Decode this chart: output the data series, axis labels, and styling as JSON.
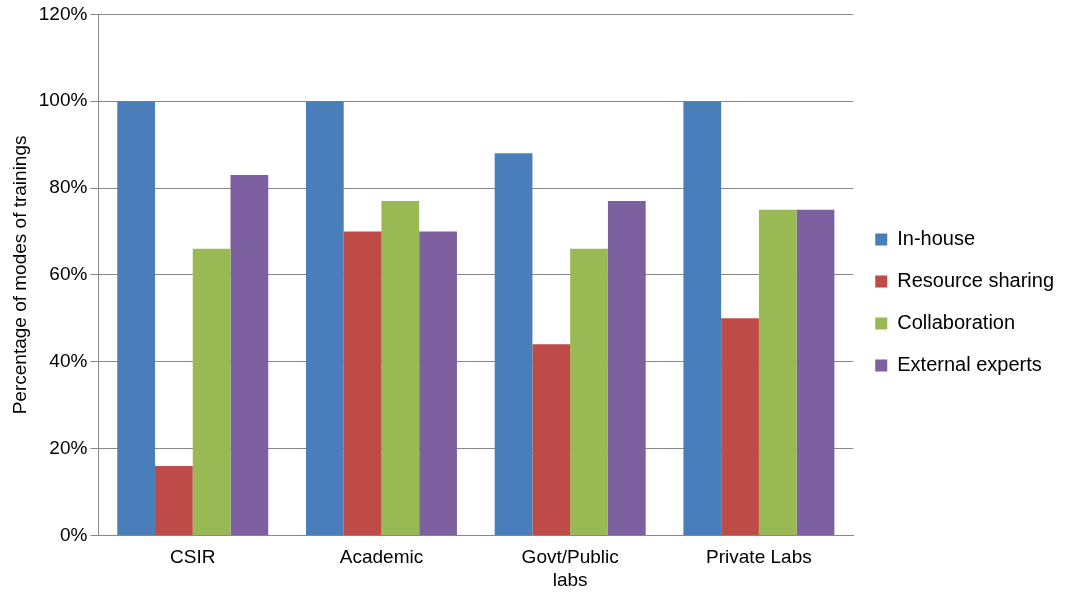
{
  "chart_data": {
    "type": "bar",
    "ylabel": "Percentage of modes of trainings",
    "categories": [
      "CSIR",
      "Academic",
      "Govt/Public labs",
      "Private Labs"
    ],
    "series": [
      {
        "name": "In-house",
        "color": "#4a7ebb",
        "values": [
          100,
          100,
          88,
          100
        ]
      },
      {
        "name": "Resource sharing",
        "color": "#be4b48",
        "values": [
          16,
          70,
          44,
          50
        ]
      },
      {
        "name": "Collaboration",
        "color": "#98b954",
        "values": [
          66,
          77,
          66,
          75
        ]
      },
      {
        "name": "External experts",
        "color": "#7d60a0",
        "values": [
          83,
          70,
          77,
          75
        ]
      }
    ],
    "ylim": [
      0,
      120
    ],
    "yticks": [
      {
        "value": 0,
        "label": "0%"
      },
      {
        "value": 20,
        "label": "20%"
      },
      {
        "value": 40,
        "label": "40%"
      },
      {
        "value": 60,
        "label": "60%"
      },
      {
        "value": 80,
        "label": "80%"
      },
      {
        "value": 100,
        "label": "100%"
      },
      {
        "value": 120,
        "label": "120%"
      }
    ],
    "grid": "y",
    "legend": "right"
  }
}
